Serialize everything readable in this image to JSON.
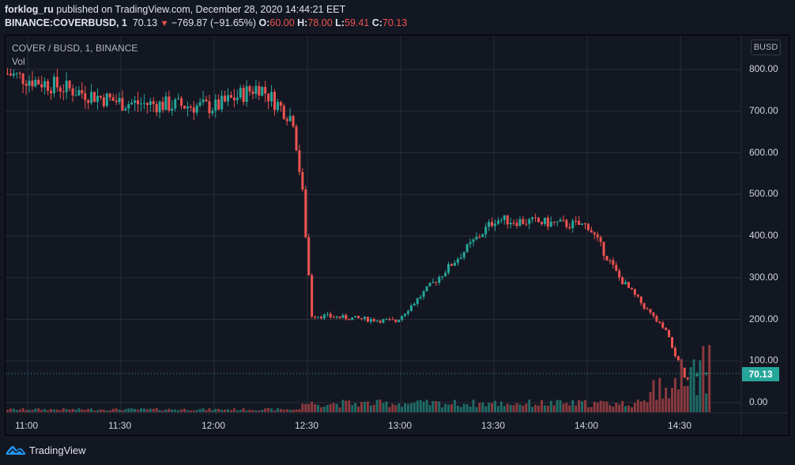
{
  "header": {
    "publisher": "forklog_ru",
    "published_text": " published on TradingView.com, December 28, 2020 14:44:21 EET",
    "symbol": "BINANCE:COVERBUSD, 1",
    "last": "70.13",
    "change_arrow": "▼",
    "change": "−769.87 (−91.65%)",
    "o_label": "O:",
    "o": "60.00",
    "h_label": "H:",
    "h": "78.00",
    "l_label": "L:",
    "l": "59.41",
    "c_label": "C:",
    "c": "70.13"
  },
  "legend": {
    "series": "COVER / BUSD, 1, BINANCE",
    "volume": "Vol"
  },
  "currency_button": "BUSD",
  "price_tag": "70.13",
  "brand": "TradingView",
  "colors": {
    "background": "#131722",
    "grid": "#2a2e39",
    "up": "#26a69a",
    "down": "#ef5350",
    "up_vol": "#1f6b66",
    "down_vol": "#8b3a3e",
    "text": "#d1d4dc"
  },
  "chart_data": {
    "type": "candlestick",
    "title": "COVER / BUSD, 1, BINANCE",
    "interval": "1 minute",
    "y_axis": {
      "labels": [
        "800.00",
        "700.00",
        "600.00",
        "500.00",
        "400.00",
        "300.00",
        "200.00",
        "100.00",
        "0.00"
      ],
      "values": [
        800,
        700,
        600,
        500,
        400,
        300,
        200,
        100,
        0
      ],
      "range": [
        -25,
        830
      ]
    },
    "x_axis": {
      "labels": [
        "11:00",
        "11:30",
        "12:00",
        "12:30",
        "13:00",
        "13:30",
        "14:00",
        "14:30"
      ]
    },
    "grid": true,
    "last_price": 70.13,
    "key_points": [
      {
        "time": "10:53",
        "price": 790
      },
      {
        "time": "11:30",
        "price": 720
      },
      {
        "time": "12:00",
        "price": 710
      },
      {
        "time": "12:14",
        "price": 760
      },
      {
        "time": "12:25",
        "price": 680
      },
      {
        "time": "12:28",
        "price": 500
      },
      {
        "time": "12:31",
        "price": 210
      },
      {
        "time": "12:58",
        "price": 195
      },
      {
        "time": "13:30",
        "price": 440
      },
      {
        "time": "14:00",
        "price": 425
      },
      {
        "time": "14:10",
        "price": 300
      },
      {
        "time": "14:25",
        "price": 170
      },
      {
        "time": "14:31",
        "price": 60
      },
      {
        "time": "14:39",
        "price": 70.13
      }
    ]
  }
}
